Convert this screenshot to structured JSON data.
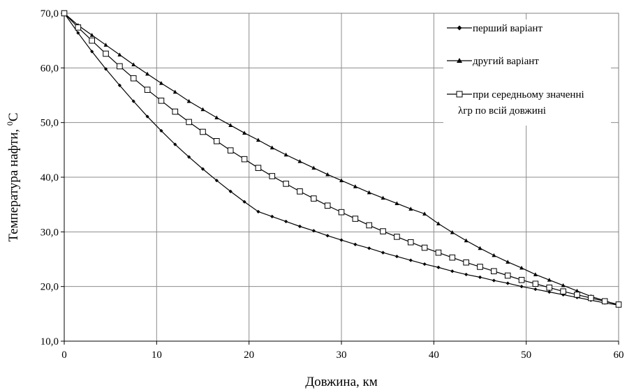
{
  "chart_data": {
    "type": "line",
    "xlabel": "Довжина, км",
    "ylabel": "Температура нафти, ",
    "ylabel_unit_sup": "0",
    "ylabel_unit": "C",
    "xlim": [
      0,
      60
    ],
    "ylim": [
      10,
      70
    ],
    "x_ticks": [
      "0",
      "10",
      "20",
      "30",
      "40",
      "50",
      "60"
    ],
    "y_ticks": [
      "10,0",
      "20,0",
      "30,0",
      "40,0",
      "50,0",
      "60,0",
      "70,0"
    ],
    "grid": true,
    "legend_position": "top-right",
    "series": [
      {
        "name": "перший варіант",
        "marker": "diamond",
        "x": [
          0,
          1.5,
          3,
          4.5,
          6,
          7.5,
          9,
          10.5,
          12,
          13.5,
          15,
          16.5,
          18,
          19.5,
          21,
          22.5,
          24,
          25.5,
          27,
          28.5,
          30,
          31.5,
          33,
          34.5,
          36,
          37.5,
          39,
          40.5,
          42,
          43.5,
          45,
          46.5,
          48,
          49.5,
          51,
          52.5,
          54,
          55.5,
          57,
          58.5,
          60
        ],
        "y": [
          70.0,
          66.4,
          63.0,
          59.8,
          56.8,
          53.9,
          51.1,
          48.5,
          46.0,
          43.7,
          41.5,
          39.4,
          37.4,
          35.5,
          33.7,
          32.8,
          31.9,
          31.0,
          30.2,
          29.3,
          28.5,
          27.7,
          27.0,
          26.2,
          25.5,
          24.8,
          24.1,
          23.5,
          22.8,
          22.2,
          21.7,
          21.1,
          20.6,
          20.0,
          19.5,
          19.0,
          18.5,
          18.0,
          17.5,
          17.0,
          16.6
        ]
      },
      {
        "name": "другий варіант",
        "marker": "triangle",
        "x": [
          0,
          1.5,
          3,
          4.5,
          6,
          7.5,
          9,
          10.5,
          12,
          13.5,
          15,
          16.5,
          18,
          19.5,
          21,
          22.5,
          24,
          25.5,
          27,
          28.5,
          30,
          31.5,
          33,
          34.5,
          36,
          37.5,
          39,
          40.5,
          42,
          43.5,
          45,
          46.5,
          48,
          49.5,
          51,
          52.5,
          54,
          55.5,
          57,
          58.5,
          60
        ],
        "y": [
          70.0,
          67.8,
          66.0,
          64.2,
          62.4,
          60.6,
          58.9,
          57.2,
          55.6,
          53.9,
          52.4,
          50.9,
          49.5,
          48.1,
          46.8,
          45.4,
          44.1,
          42.9,
          41.7,
          40.5,
          39.4,
          38.3,
          37.2,
          36.2,
          35.2,
          34.2,
          33.3,
          31.5,
          29.9,
          28.4,
          27.0,
          25.7,
          24.5,
          23.4,
          22.2,
          21.2,
          20.2,
          19.2,
          18.2,
          17.4,
          16.6
        ]
      },
      {
        "name": "при середньому значенні λгр по всій довжині",
        "legend_lines": [
          "при середньому значенні",
          "λгр по всій довжині"
        ],
        "marker": "square",
        "x": [
          0,
          1.5,
          3,
          4.5,
          6,
          7.5,
          9,
          10.5,
          12,
          13.5,
          15,
          16.5,
          18,
          19.5,
          21,
          22.5,
          24,
          25.5,
          27,
          28.5,
          30,
          31.5,
          33,
          34.5,
          36,
          37.5,
          39,
          40.5,
          42,
          43.5,
          45,
          46.5,
          48,
          49.5,
          51,
          52.5,
          54,
          55.5,
          57,
          58.5,
          60
        ],
        "y": [
          70.0,
          67.4,
          65.0,
          62.6,
          60.3,
          58.1,
          56.0,
          54.0,
          52.0,
          50.1,
          48.3,
          46.6,
          44.9,
          43.3,
          41.7,
          40.2,
          38.8,
          37.4,
          36.1,
          34.8,
          33.6,
          32.4,
          31.2,
          30.1,
          29.1,
          28.1,
          27.1,
          26.2,
          25.3,
          24.4,
          23.6,
          22.8,
          22.0,
          21.2,
          20.5,
          19.8,
          19.1,
          18.5,
          17.9,
          17.3,
          16.7
        ]
      }
    ]
  }
}
